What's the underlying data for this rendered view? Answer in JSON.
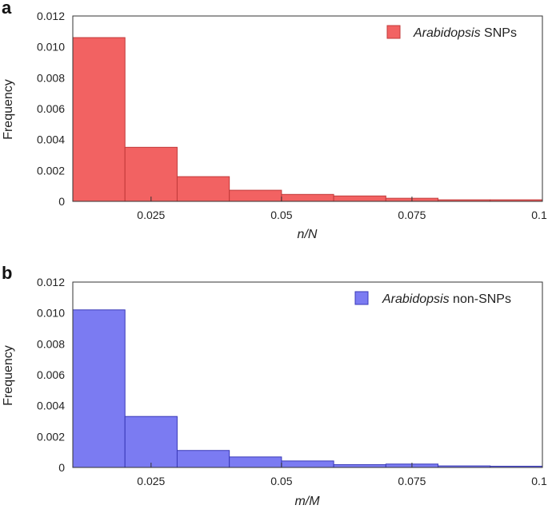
{
  "chart_data": [
    {
      "type": "bar",
      "panel_label": "a",
      "xlabel": "n/N",
      "ylabel": "Frequency",
      "legend": {
        "italic": "Arabidopsis",
        "rest": " SNPs",
        "position": "top-right"
      },
      "color": "#f26262",
      "edge_color": "#c23a3a",
      "bin_edges": [
        0.01,
        0.02,
        0.03,
        0.04,
        0.05,
        0.06,
        0.07,
        0.08,
        0.09,
        0.1
      ],
      "values": [
        0.0106,
        0.0035,
        0.0016,
        0.00072,
        0.00045,
        0.00035,
        0.0002,
        0.0001,
        0.0001
      ],
      "xlim": [
        0.01,
        0.1
      ],
      "ylim": [
        0,
        0.012
      ],
      "xticks": [
        0.025,
        0.05,
        0.075,
        0.1
      ],
      "xtick_labels": [
        "0.025",
        "0.05",
        "0.075",
        "0.1"
      ],
      "yticks": [
        0,
        0.002,
        0.004,
        0.006,
        0.008,
        0.01,
        0.012
      ],
      "ytick_labels": [
        "0",
        "0.002",
        "0.004",
        "0.006",
        "0.008",
        "0.010",
        "0.012"
      ]
    },
    {
      "type": "bar",
      "panel_label": "b",
      "xlabel": "m/M",
      "ylabel": "Frequency",
      "legend": {
        "italic": "Arabidopsis",
        "rest": " non-SNPs",
        "position": "top-right"
      },
      "color": "#7b7bf2",
      "edge_color": "#3a3ab8",
      "bin_edges": [
        0.01,
        0.02,
        0.03,
        0.04,
        0.05,
        0.06,
        0.07,
        0.08,
        0.09,
        0.1
      ],
      "values": [
        0.0102,
        0.0033,
        0.0011,
        0.00068,
        0.00042,
        0.00018,
        0.00022,
        0.0001,
        8e-05
      ],
      "xlim": [
        0.01,
        0.1
      ],
      "ylim": [
        0,
        0.012
      ],
      "xticks": [
        0.025,
        0.05,
        0.075,
        0.1
      ],
      "xtick_labels": [
        "0.025",
        "0.05",
        "0.075",
        "0.1"
      ],
      "yticks": [
        0,
        0.002,
        0.004,
        0.006,
        0.008,
        0.01,
        0.012
      ],
      "ytick_labels": [
        "0",
        "0.002",
        "0.004",
        "0.006",
        "0.008",
        "0.010",
        "0.012"
      ]
    }
  ]
}
